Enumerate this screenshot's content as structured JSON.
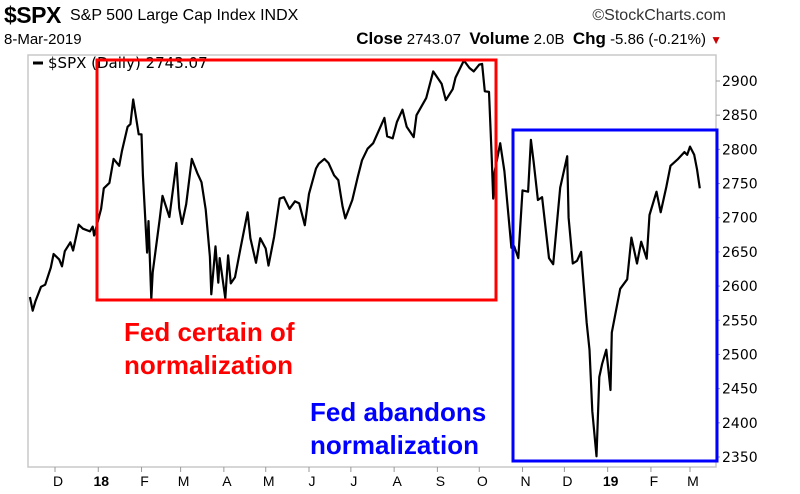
{
  "header": {
    "symbol": "$SPX",
    "name": "S&P 500 Large Cap Index",
    "exchange": "INDX",
    "brand": "©StockCharts.com",
    "date": "8-Mar-2019",
    "close_label": "Close",
    "close_value": "2743.07",
    "volume_label": "Volume",
    "volume_value": "2.0B",
    "chg_label": "Chg",
    "chg_value": "-5.86 (-0.21%)",
    "chg_direction": "down",
    "down_color": "#cc0000"
  },
  "annotations": {
    "red_text_1": "Fed certain of",
    "red_text_2": "normalization",
    "blue_text_1": "Fed abandons",
    "blue_text_2": "normalization",
    "red_color": "#ff0000",
    "blue_color": "#0000ff",
    "red_box_range": [
      "2018-01-01",
      "2018-10-12"
    ],
    "blue_box_range": [
      "2018-10-25",
      "2019-03-08"
    ]
  },
  "chart_data": {
    "type": "line",
    "legend": "$SPX (Daily) 2743.07",
    "legend_placement": "top-left",
    "ylim": [
      2350,
      2900
    ],
    "yticks": [
      2900,
      2850,
      2800,
      2750,
      2700,
      2650,
      2600,
      2550,
      2500,
      2450,
      2400,
      2350
    ],
    "xticks": [
      {
        "label": "D",
        "date": "2017-12-01",
        "bold": false
      },
      {
        "label": "18",
        "date": "2018-01-01",
        "bold": true
      },
      {
        "label": "F",
        "date": "2018-02-01",
        "bold": false
      },
      {
        "label": "M",
        "date": "2018-03-01",
        "bold": false
      },
      {
        "label": "A",
        "date": "2018-04-01",
        "bold": false
      },
      {
        "label": "M",
        "date": "2018-05-01",
        "bold": false
      },
      {
        "label": "J",
        "date": "2018-06-01",
        "bold": false
      },
      {
        "label": "J",
        "date": "2018-07-01",
        "bold": false
      },
      {
        "label": "A",
        "date": "2018-08-01",
        "bold": false
      },
      {
        "label": "S",
        "date": "2018-09-01",
        "bold": false
      },
      {
        "label": "O",
        "date": "2018-10-01",
        "bold": false
      },
      {
        "label": "N",
        "date": "2018-11-01",
        "bold": false
      },
      {
        "label": "D",
        "date": "2018-12-01",
        "bold": false
      },
      {
        "label": "19",
        "date": "2019-01-01",
        "bold": true
      },
      {
        "label": "F",
        "date": "2019-02-01",
        "bold": false
      },
      {
        "label": "M",
        "date": "2019-03-01",
        "bold": false
      }
    ],
    "line_color": "#000000",
    "points": [
      [
        "2017-11-13",
        2584
      ],
      [
        "2017-11-15",
        2564
      ],
      [
        "2017-11-17",
        2578
      ],
      [
        "2017-11-21",
        2599
      ],
      [
        "2017-11-24",
        2602
      ],
      [
        "2017-11-28",
        2627
      ],
      [
        "2017-11-30",
        2647
      ],
      [
        "2017-12-04",
        2639
      ],
      [
        "2017-12-06",
        2629
      ],
      [
        "2017-12-08",
        2651
      ],
      [
        "2017-12-12",
        2664
      ],
      [
        "2017-12-14",
        2652
      ],
      [
        "2017-12-18",
        2690
      ],
      [
        "2017-12-21",
        2684
      ],
      [
        "2017-12-26",
        2680
      ],
      [
        "2017-12-28",
        2687
      ],
      [
        "2017-12-29",
        2674
      ],
      [
        "2018-01-03",
        2713
      ],
      [
        "2018-01-05",
        2743
      ],
      [
        "2018-01-09",
        2751
      ],
      [
        "2018-01-12",
        2786
      ],
      [
        "2018-01-16",
        2776
      ],
      [
        "2018-01-18",
        2798
      ],
      [
        "2018-01-22",
        2833
      ],
      [
        "2018-01-24",
        2837
      ],
      [
        "2018-01-26",
        2873
      ],
      [
        "2018-01-30",
        2822
      ],
      [
        "2018-02-01",
        2822
      ],
      [
        "2018-02-02",
        2762
      ],
      [
        "2018-02-05",
        2649
      ],
      [
        "2018-02-06",
        2695
      ],
      [
        "2018-02-08",
        2581
      ],
      [
        "2018-02-09",
        2620
      ],
      [
        "2018-02-14",
        2698
      ],
      [
        "2018-02-16",
        2732
      ],
      [
        "2018-02-21",
        2701
      ],
      [
        "2018-02-26",
        2780
      ],
      [
        "2018-02-28",
        2714
      ],
      [
        "2018-03-02",
        2691
      ],
      [
        "2018-03-05",
        2720
      ],
      [
        "2018-03-09",
        2786
      ],
      [
        "2018-03-13",
        2765
      ],
      [
        "2018-03-16",
        2752
      ],
      [
        "2018-03-19",
        2712
      ],
      [
        "2018-03-22",
        2643
      ],
      [
        "2018-03-23",
        2588
      ],
      [
        "2018-03-26",
        2658
      ],
      [
        "2018-03-28",
        2605
      ],
      [
        "2018-03-29",
        2641
      ],
      [
        "2018-04-02",
        2582
      ],
      [
        "2018-04-04",
        2645
      ],
      [
        "2018-04-06",
        2604
      ],
      [
        "2018-04-09",
        2613
      ],
      [
        "2018-04-13",
        2656
      ],
      [
        "2018-04-18",
        2708
      ],
      [
        "2018-04-20",
        2670
      ],
      [
        "2018-04-24",
        2634
      ],
      [
        "2018-04-27",
        2670
      ],
      [
        "2018-05-01",
        2655
      ],
      [
        "2018-05-03",
        2630
      ],
      [
        "2018-05-07",
        2672
      ],
      [
        "2018-05-11",
        2728
      ],
      [
        "2018-05-14",
        2730
      ],
      [
        "2018-05-18",
        2713
      ],
      [
        "2018-05-22",
        2724
      ],
      [
        "2018-05-25",
        2721
      ],
      [
        "2018-05-29",
        2689
      ],
      [
        "2018-06-01",
        2735
      ],
      [
        "2018-06-06",
        2772
      ],
      [
        "2018-06-08",
        2779
      ],
      [
        "2018-06-12",
        2786
      ],
      [
        "2018-06-15",
        2780
      ],
      [
        "2018-06-19",
        2762
      ],
      [
        "2018-06-22",
        2755
      ],
      [
        "2018-06-25",
        2717
      ],
      [
        "2018-06-27",
        2699
      ],
      [
        "2018-07-02",
        2726
      ],
      [
        "2018-07-06",
        2760
      ],
      [
        "2018-07-09",
        2784
      ],
      [
        "2018-07-13",
        2801
      ],
      [
        "2018-07-17",
        2809
      ],
      [
        "2018-07-25",
        2846
      ],
      [
        "2018-07-27",
        2819
      ],
      [
        "2018-07-31",
        2816
      ],
      [
        "2018-08-03",
        2840
      ],
      [
        "2018-08-07",
        2858
      ],
      [
        "2018-08-10",
        2833
      ],
      [
        "2018-08-15",
        2818
      ],
      [
        "2018-08-17",
        2850
      ],
      [
        "2018-08-24",
        2875
      ],
      [
        "2018-08-29",
        2914
      ],
      [
        "2018-09-04",
        2896
      ],
      [
        "2018-09-07",
        2872
      ],
      [
        "2018-09-12",
        2888
      ],
      [
        "2018-09-14",
        2905
      ],
      [
        "2018-09-20",
        2930
      ],
      [
        "2018-09-24",
        2919
      ],
      [
        "2018-09-27",
        2914
      ],
      [
        "2018-10-01",
        2924
      ],
      [
        "2018-10-03",
        2925
      ],
      [
        "2018-10-05",
        2885
      ],
      [
        "2018-10-08",
        2884
      ],
      [
        "2018-10-10",
        2785
      ],
      [
        "2018-10-11",
        2728
      ],
      [
        "2018-10-12",
        2767
      ],
      [
        "2018-10-16",
        2809
      ],
      [
        "2018-10-19",
        2768
      ],
      [
        "2018-10-24",
        2656
      ],
      [
        "2018-10-26",
        2658
      ],
      [
        "2018-10-29",
        2641
      ],
      [
        "2018-11-01",
        2740
      ],
      [
        "2018-11-05",
        2738
      ],
      [
        "2018-11-07",
        2814
      ],
      [
        "2018-11-09",
        2781
      ],
      [
        "2018-11-12",
        2726
      ],
      [
        "2018-11-15",
        2730
      ],
      [
        "2018-11-20",
        2641
      ],
      [
        "2018-11-23",
        2632
      ],
      [
        "2018-11-28",
        2744
      ],
      [
        "2018-12-03",
        2790
      ],
      [
        "2018-12-04",
        2700
      ],
      [
        "2018-12-07",
        2633
      ],
      [
        "2018-12-10",
        2637
      ],
      [
        "2018-12-13",
        2650
      ],
      [
        "2018-12-17",
        2546
      ],
      [
        "2018-12-19",
        2507
      ],
      [
        "2018-12-21",
        2417
      ],
      [
        "2018-12-24",
        2351
      ],
      [
        "2018-12-26",
        2467
      ],
      [
        "2018-12-28",
        2486
      ],
      [
        "2018-12-31",
        2507
      ],
      [
        "2019-01-03",
        2448
      ],
      [
        "2019-01-04",
        2532
      ],
      [
        "2019-01-10",
        2596
      ],
      [
        "2019-01-15",
        2610
      ],
      [
        "2019-01-18",
        2671
      ],
      [
        "2019-01-22",
        2633
      ],
      [
        "2019-01-25",
        2665
      ],
      [
        "2019-01-29",
        2640
      ],
      [
        "2019-01-31",
        2704
      ],
      [
        "2019-02-05",
        2738
      ],
      [
        "2019-02-08",
        2708
      ],
      [
        "2019-02-12",
        2745
      ],
      [
        "2019-02-15",
        2776
      ],
      [
        "2019-02-20",
        2785
      ],
      [
        "2019-02-25",
        2796
      ],
      [
        "2019-02-27",
        2792
      ],
      [
        "2019-03-01",
        2804
      ],
      [
        "2019-03-04",
        2792
      ],
      [
        "2019-03-06",
        2771
      ],
      [
        "2019-03-08",
        2743
      ]
    ]
  }
}
